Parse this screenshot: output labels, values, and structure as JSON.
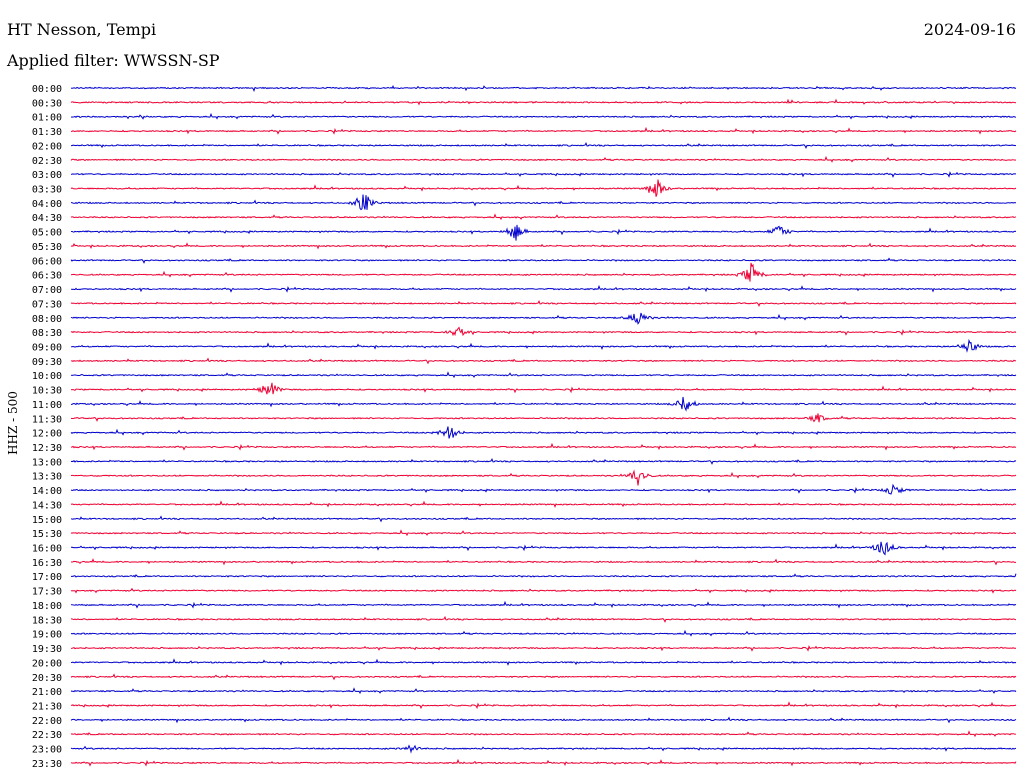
{
  "header": {
    "station": "HT Nesson, Tempi",
    "date": "2024-09-16",
    "filter": "Applied filter: WWSSN-SP"
  },
  "chart_data": {
    "type": "line",
    "ylabel": "HHZ - 500",
    "colors": [
      "#0000cc",
      "#ee0033"
    ],
    "rows": [
      {
        "time": "00:00",
        "color": "blue"
      },
      {
        "time": "00:30",
        "color": "red"
      },
      {
        "time": "01:00",
        "color": "blue"
      },
      {
        "time": "01:30",
        "color": "red"
      },
      {
        "time": "02:00",
        "color": "blue"
      },
      {
        "time": "02:30",
        "color": "red"
      },
      {
        "time": "03:00",
        "color": "blue"
      },
      {
        "time": "03:30",
        "color": "red"
      },
      {
        "time": "04:00",
        "color": "blue"
      },
      {
        "time": "04:30",
        "color": "red"
      },
      {
        "time": "05:00",
        "color": "blue"
      },
      {
        "time": "05:30",
        "color": "red"
      },
      {
        "time": "06:00",
        "color": "blue"
      },
      {
        "time": "06:30",
        "color": "red"
      },
      {
        "time": "07:00",
        "color": "blue"
      },
      {
        "time": "07:30",
        "color": "red"
      },
      {
        "time": "08:00",
        "color": "blue"
      },
      {
        "time": "08:30",
        "color": "red"
      },
      {
        "time": "09:00",
        "color": "blue"
      },
      {
        "time": "09:30",
        "color": "red"
      },
      {
        "time": "10:00",
        "color": "blue"
      },
      {
        "time": "10:30",
        "color": "red"
      },
      {
        "time": "11:00",
        "color": "blue"
      },
      {
        "time": "11:30",
        "color": "red"
      },
      {
        "time": "12:00",
        "color": "blue"
      },
      {
        "time": "12:30",
        "color": "red"
      },
      {
        "time": "13:00",
        "color": "blue"
      },
      {
        "time": "13:30",
        "color": "red"
      },
      {
        "time": "14:00",
        "color": "blue"
      },
      {
        "time": "14:30",
        "color": "red"
      },
      {
        "time": "15:00",
        "color": "blue"
      },
      {
        "time": "15:30",
        "color": "red"
      },
      {
        "time": "16:00",
        "color": "blue"
      },
      {
        "time": "16:30",
        "color": "red"
      },
      {
        "time": "17:00",
        "color": "blue"
      },
      {
        "time": "17:30",
        "color": "red"
      },
      {
        "time": "18:00",
        "color": "blue"
      },
      {
        "time": "18:30",
        "color": "red"
      },
      {
        "time": "19:00",
        "color": "blue"
      },
      {
        "time": "19:30",
        "color": "red"
      },
      {
        "time": "20:00",
        "color": "blue"
      },
      {
        "time": "20:30",
        "color": "red"
      },
      {
        "time": "21:00",
        "color": "blue"
      },
      {
        "time": "21:30",
        "color": "red"
      },
      {
        "time": "22:00",
        "color": "blue"
      },
      {
        "time": "22:30",
        "color": "red"
      },
      {
        "time": "23:00",
        "color": "blue"
      },
      {
        "time": "23:30",
        "color": "red"
      }
    ],
    "events": [
      {
        "row": "04:00",
        "at": 0.31,
        "amp": 1.4
      },
      {
        "row": "03:30",
        "at": 0.62,
        "amp": 1.3
      },
      {
        "row": "05:00",
        "at": 0.47,
        "amp": 1.2
      },
      {
        "row": "05:00",
        "at": 0.75,
        "amp": 0.9
      },
      {
        "row": "06:30",
        "at": 0.72,
        "amp": 1.5
      },
      {
        "row": "08:00",
        "at": 0.6,
        "amp": 1.1
      },
      {
        "row": "08:30",
        "at": 0.41,
        "amp": 0.9
      },
      {
        "row": "09:00",
        "at": 0.95,
        "amp": 1.0
      },
      {
        "row": "10:30",
        "at": 0.21,
        "amp": 1.3
      },
      {
        "row": "11:00",
        "at": 0.65,
        "amp": 1.2
      },
      {
        "row": "12:00",
        "at": 0.4,
        "amp": 1.2
      },
      {
        "row": "13:30",
        "at": 0.6,
        "amp": 1.3
      },
      {
        "row": "14:00",
        "at": 0.87,
        "amp": 0.8
      },
      {
        "row": "16:00",
        "at": 0.86,
        "amp": 1.3
      },
      {
        "row": "11:30",
        "at": 0.79,
        "amp": 0.6
      },
      {
        "row": "23:00",
        "at": 0.36,
        "amp": 0.5
      }
    ]
  }
}
